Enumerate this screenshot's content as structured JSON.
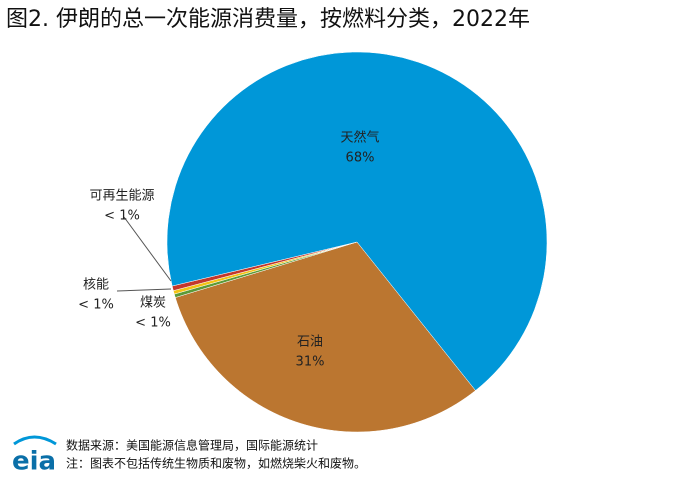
{
  "chart_data": {
    "type": "pie",
    "title": "图2. 伊朗的总一次能源消费量，按燃料分类，2022年",
    "categories": [
      "石油",
      "煤炭",
      "核能",
      "可再生能源",
      "天然气"
    ],
    "values": [
      31,
      0.3,
      0.3,
      0.4,
      68
    ],
    "value_labels": [
      "31%",
      "< 1%",
      "< 1%",
      "< 1%",
      "68%"
    ],
    "colors": [
      "#bb7630",
      "#5b9a38",
      "#f2c314",
      "#c3372b",
      "#0097d8"
    ]
  },
  "footer": {
    "logo": "eia",
    "source": "数据来源：美国能源信息管理局，国际能源统计",
    "note": "注：图表不包括传统生物质和废物，如燃烧柴火和废物。"
  }
}
